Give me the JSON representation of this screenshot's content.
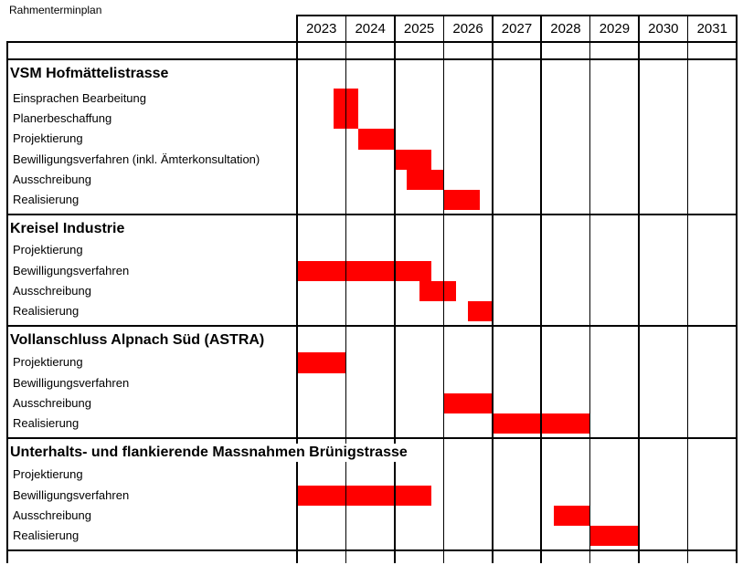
{
  "page_title": "Rahmenterminplan",
  "colors": {
    "bar": "#ff0000",
    "grid": "#000000",
    "text": "#000000",
    "background": "#ffffff"
  },
  "chart_data": {
    "type": "gantt",
    "title": "Rahmenterminplan",
    "x_axis": {
      "unit": "year",
      "tick_labels": [
        "2023",
        "2024",
        "2025",
        "2026",
        "2027",
        "2028",
        "2029",
        "2030",
        "2031"
      ],
      "range_start": 2023,
      "range_end": 2032,
      "gridlines": "vertical-per-year"
    },
    "bar_color": "#ff0000",
    "legend": "none",
    "sections": [
      {
        "title": "VSM Hofmättelistrasse",
        "tasks": [
          {
            "label": "Einsprachen Bearbeitung",
            "bar": {
              "start": 2023.75,
              "end": 2024.25,
              "row_span": 2
            }
          },
          {
            "label": "Planerbeschaffung",
            "bar": null
          },
          {
            "label": "Projektierung",
            "bar": {
              "start": 2024.25,
              "end": 2025.0,
              "row_span": 1
            }
          },
          {
            "label": "Bewilligungsverfahren (inkl. Ämterkonsultation)",
            "bar": {
              "start": 2025.0,
              "end": 2025.75,
              "row_span": 1
            }
          },
          {
            "label": "Ausschreibung",
            "bar": {
              "start": 2025.25,
              "end": 2026.0,
              "row_span": 1
            }
          },
          {
            "label": "Realisierung",
            "bar": {
              "start": 2026.0,
              "end": 2026.75,
              "row_span": 1
            }
          }
        ]
      },
      {
        "title": "Kreisel Industrie",
        "tasks": [
          {
            "label": "Projektierung",
            "bar": null
          },
          {
            "label": "Bewilligungsverfahren",
            "bar": {
              "start": 2023.0,
              "end": 2025.75,
              "row_span": 1
            }
          },
          {
            "label": "Ausschreibung",
            "bar": {
              "start": 2025.5,
              "end": 2026.25,
              "row_span": 1
            }
          },
          {
            "label": "Realisierung",
            "bar": {
              "start": 2026.5,
              "end": 2027.0,
              "row_span": 1
            }
          }
        ]
      },
      {
        "title": "Vollanschluss Alpnach Süd (ASTRA)",
        "tasks": [
          {
            "label": "Projektierung",
            "bar": {
              "start": 2023.0,
              "end": 2024.0,
              "row_span": 1
            }
          },
          {
            "label": "Bewilligungsverfahren",
            "bar": null
          },
          {
            "label": "Ausschreibung",
            "bar": {
              "start": 2026.0,
              "end": 2027.0,
              "row_span": 1
            }
          },
          {
            "label": "Realisierung",
            "bar": {
              "start": 2027.0,
              "end": 2029.0,
              "row_span": 1
            }
          }
        ]
      },
      {
        "title": "Unterhalts- und flankierende Massnahmen Brünigstrasse",
        "tasks": [
          {
            "label": "Projektierung",
            "bar": null
          },
          {
            "label": "Bewilligungsverfahren",
            "bar": {
              "start": 2023.0,
              "end": 2025.75,
              "row_span": 1
            }
          },
          {
            "label": "Ausschreibung",
            "bar": {
              "start": 2028.25,
              "end": 2029.0,
              "row_span": 1
            }
          },
          {
            "label": "Realisierung",
            "bar": {
              "start": 2029.0,
              "end": 2030.0,
              "row_span": 1
            }
          }
        ]
      }
    ]
  }
}
